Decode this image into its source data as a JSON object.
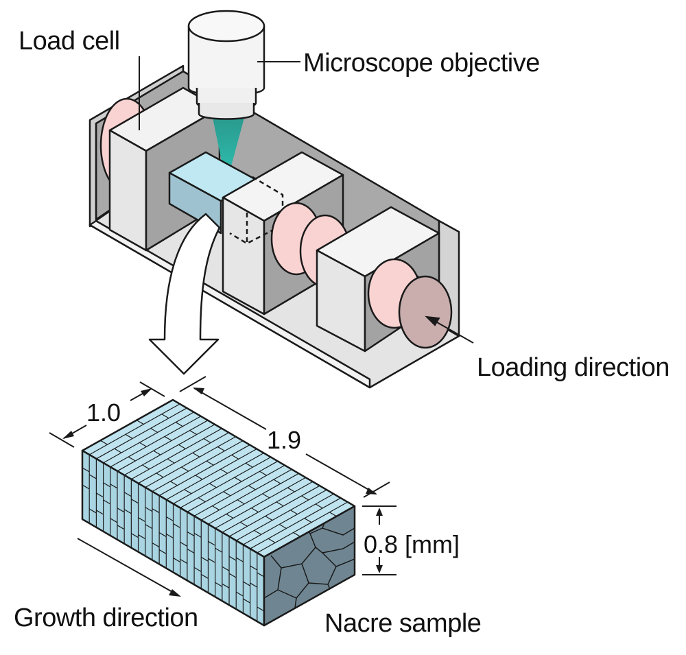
{
  "labels": {
    "load_cell": "Load cell",
    "microscope_objective": "Microscope objective",
    "loading_direction": "Loading direction",
    "growth_direction": "Growth direction",
    "nacre_sample": "Nacre sample"
  },
  "dimensions": {
    "width": "1.0",
    "length": "1.9",
    "height": "0.8 [mm]"
  },
  "colors": {
    "outline": "#1a1a1a",
    "frame_floor": "#e4e4e4",
    "frame_back": "#a8a8a8",
    "block_front": "#e6e6e6",
    "block_side": "#a0a0a0",
    "load_cell_pink": "#f9d3d2",
    "loading_face": "#c9aead",
    "sample_top": "#bfe4ef",
    "sample_side": "#9bbccb",
    "sample_end": "#6f8692",
    "beam": "#21a89b"
  }
}
